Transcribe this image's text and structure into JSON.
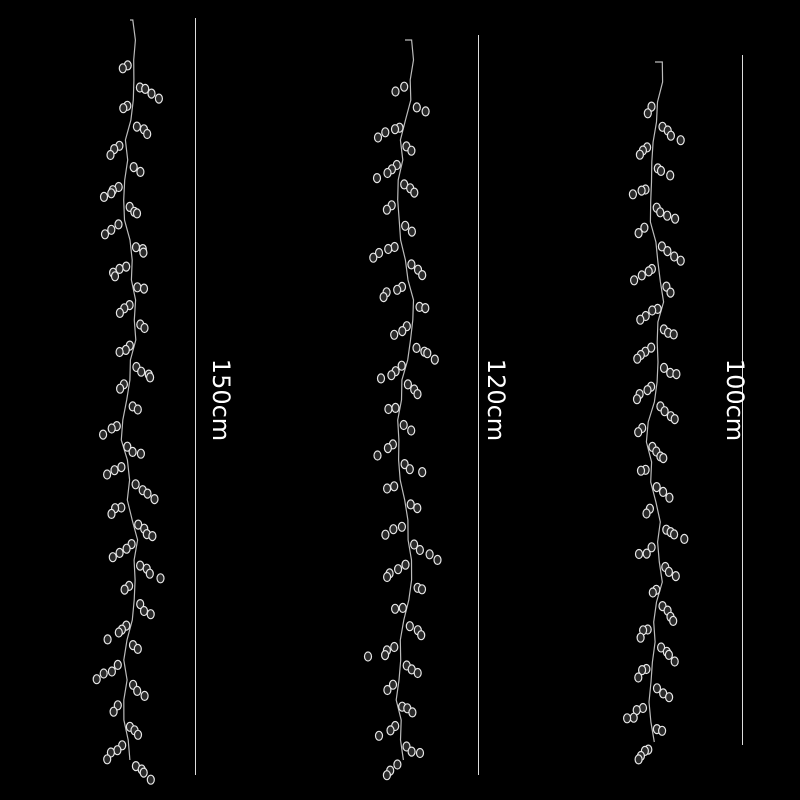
{
  "products": [
    {
      "length_label": "150cm"
    },
    {
      "length_label": "120cm"
    },
    {
      "length_label": "100cm"
    }
  ],
  "colors": {
    "background": "#000000",
    "crystal": "#e8e8e8",
    "line": "#dddddd"
  }
}
